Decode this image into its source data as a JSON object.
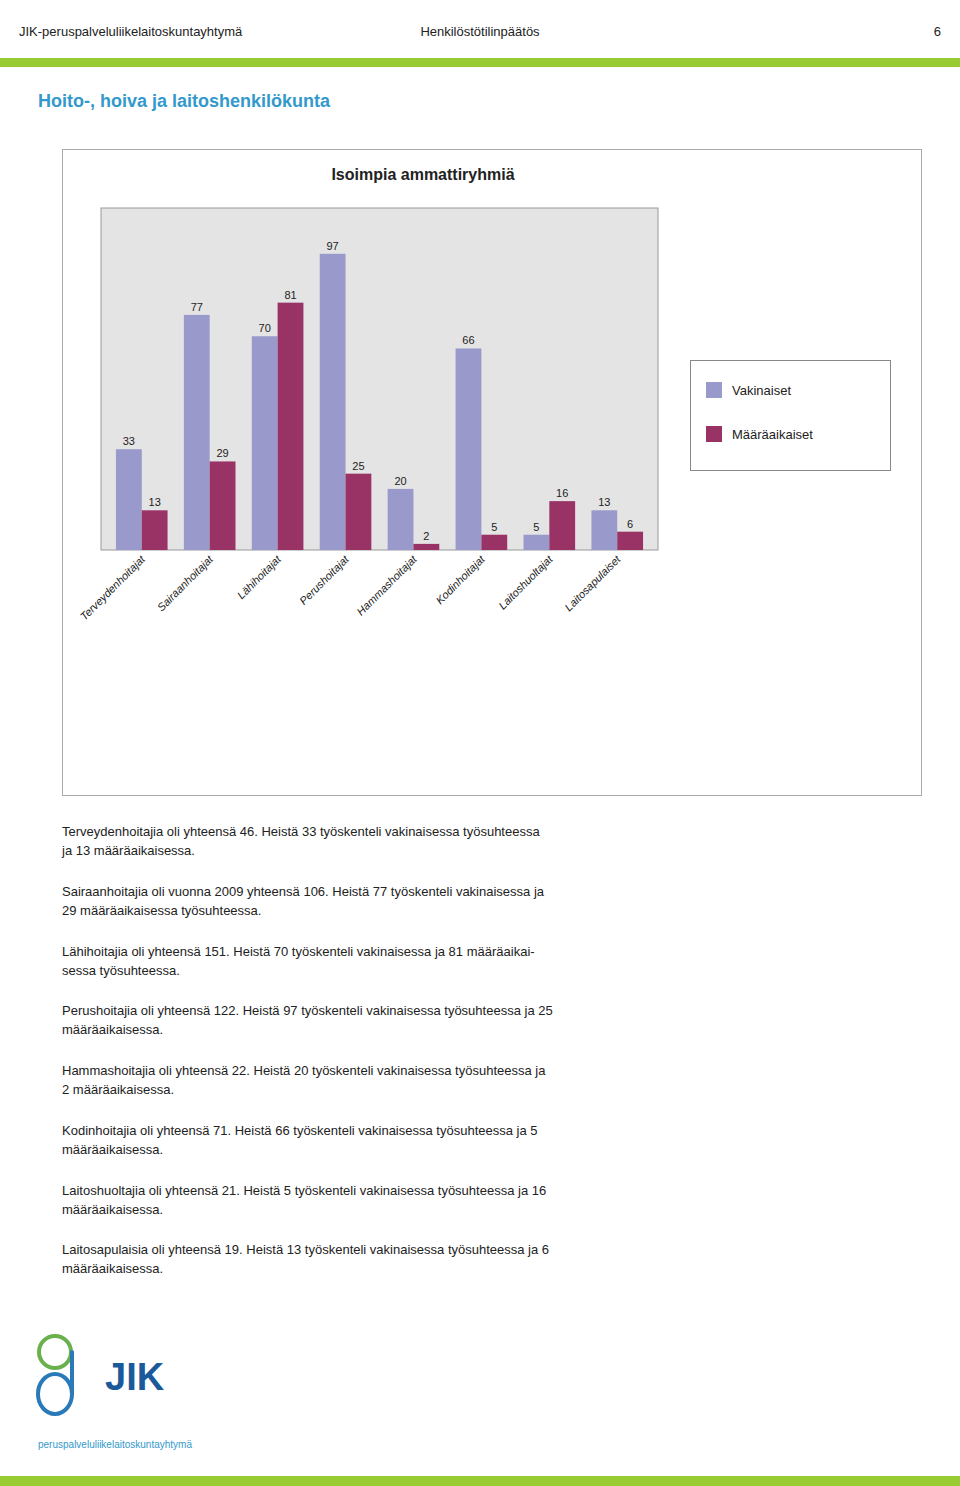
{
  "title_left": "JIK-peruspalveluliikelaitoskuntayhtymä",
  "title_center": "Henkilöstötilinpäätös",
  "title_right": "6",
  "section_title": "Hoito-, hoiva ja laitoshenkilökunta",
  "paragraphs": [
    "Terveydenhoitajia oli yhteensä 46. Heistä 33 työskenteli vakinaisessa työsuhteessa\nja 13 määräaikaisessa.",
    "Sairaanhoitajia oli vuonna 2009 yhteensä 106. Heistä 77 työskenteli vakinaisessa ja\n29 määräaikaisessa työsuhteessa.",
    "Lähihoitajia oli yhteensä 151. Heistä 70 työskenteli vakinaisessa ja 81 määräaikai-\nsessa työsuhteessa.",
    "Perushoitajia oli yhteensä 122. Heistä 97 työskenteli vakinaisessa työsuhteessa ja 25\nmääräaikaisessa.",
    "Hammashoitajia oli yhteensä 22. Heistä 20 työskenteli vakinaisessa työsuhteessa ja\n2 määräaikaisessa.",
    "Kodinhoitajia oli yhteensä 71. Heistä 66 työskenteli vakinaisessa työsuhteessa ja 5\nmääräaikaisessa.",
    "Laitoshuoltajia oli yhteensä 21. Heistä 5 työskenteli vakinaisessa työsuhteessa ja 16\nmääräaikaisessa.",
    "Laitosapulaisia oli yhteensä 19. Heistä 13 työskenteli vakinaisessa työsuhteessa ja 6\nmääräaikaisessa."
  ],
  "logo_text": "JIK",
  "footer_text": "peruspalveluliikelaitoskuntayhtymä",
  "chart_data": {
    "type": "bar",
    "title": "Isoimpia ammattiryhmiä",
    "categories": [
      "Terveydenhoitajat",
      "Sairaanhoitajat",
      "Lähihoitajat",
      "Perushoitajat",
      "Hammashoitajat",
      "Kodinhoitajat",
      "Laitoshuoltajat",
      "Laitosapulaiset"
    ],
    "series": [
      {
        "name": "Vakinaiset",
        "color": "#9999cc",
        "values": [
          33,
          77,
          70,
          97,
          20,
          66,
          5,
          13
        ]
      },
      {
        "name": "Määräaikaiset",
        "color": "#993366",
        "values": [
          13,
          29,
          81,
          25,
          2,
          5,
          16,
          6
        ]
      }
    ],
    "ylim": [
      0,
      112
    ],
    "grid": false,
    "legend": "right",
    "data_labels": true,
    "tick_labels": "x"
  }
}
